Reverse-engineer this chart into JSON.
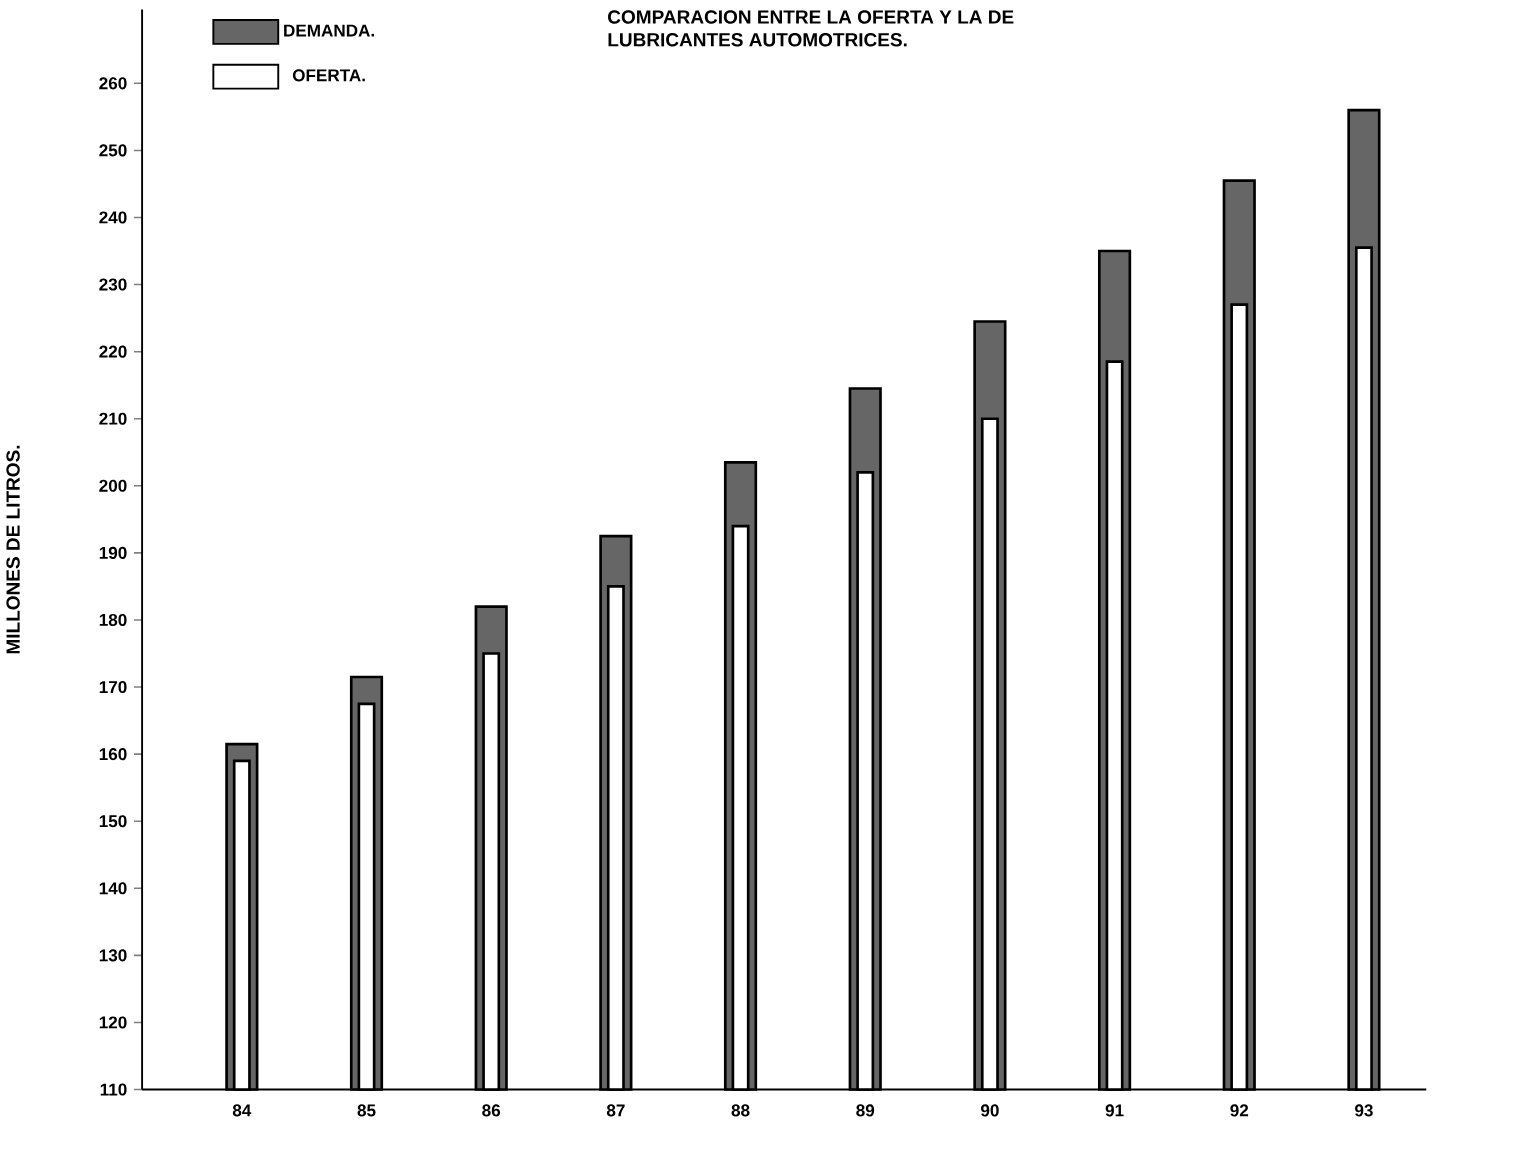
{
  "chart_data": {
    "type": "bar",
    "title": "COMPARACION ENTRE LA OFERTA Y LA DE",
    "subtitle": "LUBRICANTES AUTOMOTRICES.",
    "ylabel": "MILLONES DE LITROS.",
    "categories": [
      "84",
      "85",
      "86",
      "87",
      "88",
      "89",
      "90",
      "91",
      "92",
      "93"
    ],
    "series": [
      {
        "name": "DEMANDA.",
        "color": "#666666",
        "values": [
          161.5,
          171.5,
          182,
          192.5,
          203.5,
          214.5,
          224.5,
          235,
          245.5,
          256
        ]
      },
      {
        "name": "OFERTA.",
        "color": "#ffffff",
        "values": [
          159,
          167.5,
          175,
          185,
          194,
          202,
          210,
          218.5,
          227,
          235.5
        ]
      }
    ],
    "ylim": [
      110,
      271
    ],
    "yticks": [
      110,
      120,
      130,
      140,
      150,
      160,
      170,
      180,
      190,
      200,
      210,
      220,
      230,
      240,
      250,
      260
    ],
    "grid": false,
    "legend": "top left"
  }
}
